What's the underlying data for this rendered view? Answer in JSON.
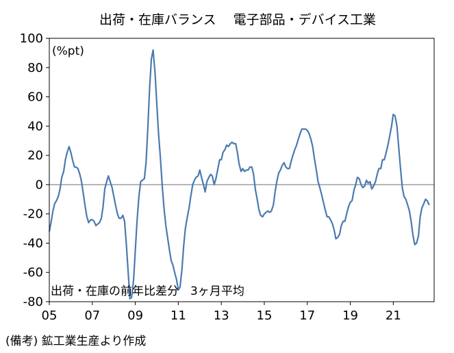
{
  "chart_data": {
    "type": "line",
    "title": "出荷・在庫バランス　 電子部品・デバイス工業",
    "unit_label": "(%pt)",
    "annotation": "出荷・在庫の前年比差分　3ヶ月平均",
    "ylim": [
      -80,
      100
    ],
    "yticks": [
      "100",
      "80",
      "60",
      "40",
      "20",
      "0",
      "-20",
      "-40",
      "-60",
      "-80"
    ],
    "xlim": [
      2005.0,
      2022.9
    ],
    "xticks": [
      {
        "label": "05",
        "x": 2005
      },
      {
        "label": "07",
        "x": 2007
      },
      {
        "label": "09",
        "x": 2009
      },
      {
        "label": "11",
        "x": 2011
      },
      {
        "label": "13",
        "x": 2013
      },
      {
        "label": "15",
        "x": 2015
      },
      {
        "label": "17",
        "x": 2017
      },
      {
        "label": "19",
        "x": 2019
      },
      {
        "label": "21",
        "x": 2021
      }
    ],
    "grid": false,
    "zero_line": true,
    "line_color": "#4a7ab0",
    "series": [
      {
        "points": [
          [
            2005.0,
            -32
          ],
          [
            2005.08,
            -26
          ],
          [
            2005.17,
            -18
          ],
          [
            2005.25,
            -13
          ],
          [
            2005.33,
            -11
          ],
          [
            2005.42,
            -8
          ],
          [
            2005.5,
            -3
          ],
          [
            2005.58,
            5
          ],
          [
            2005.67,
            9
          ],
          [
            2005.75,
            17
          ],
          [
            2005.83,
            22
          ],
          [
            2005.92,
            26
          ],
          [
            2006.0,
            22
          ],
          [
            2006.08,
            17
          ],
          [
            2006.17,
            12
          ],
          [
            2006.25,
            12
          ],
          [
            2006.33,
            11
          ],
          [
            2006.42,
            7
          ],
          [
            2006.5,
            2
          ],
          [
            2006.58,
            -6
          ],
          [
            2006.67,
            -15
          ],
          [
            2006.75,
            -22
          ],
          [
            2006.83,
            -26
          ],
          [
            2006.92,
            -24
          ],
          [
            2007.0,
            -24
          ],
          [
            2007.08,
            -25
          ],
          [
            2007.17,
            -28
          ],
          [
            2007.25,
            -27
          ],
          [
            2007.33,
            -26
          ],
          [
            2007.42,
            -23
          ],
          [
            2007.5,
            -15
          ],
          [
            2007.58,
            -3
          ],
          [
            2007.67,
            2
          ],
          [
            2007.75,
            6
          ],
          [
            2007.83,
            2
          ],
          [
            2007.92,
            -2
          ],
          [
            2008.0,
            -8
          ],
          [
            2008.08,
            -14
          ],
          [
            2008.17,
            -20
          ],
          [
            2008.25,
            -23
          ],
          [
            2008.33,
            -23
          ],
          [
            2008.42,
            -21
          ],
          [
            2008.5,
            -25
          ],
          [
            2008.58,
            -40
          ],
          [
            2008.67,
            -60
          ],
          [
            2008.75,
            -78
          ],
          [
            2008.83,
            -77
          ],
          [
            2008.92,
            -65
          ],
          [
            2009.0,
            -45
          ],
          [
            2009.08,
            -25
          ],
          [
            2009.17,
            -8
          ],
          [
            2009.25,
            2
          ],
          [
            2009.33,
            3
          ],
          [
            2009.42,
            4
          ],
          [
            2009.5,
            15
          ],
          [
            2009.58,
            38
          ],
          [
            2009.67,
            67
          ],
          [
            2009.75,
            86
          ],
          [
            2009.83,
            92
          ],
          [
            2009.92,
            76
          ],
          [
            2010.0,
            55
          ],
          [
            2010.08,
            35
          ],
          [
            2010.17,
            18
          ],
          [
            2010.25,
            0
          ],
          [
            2010.33,
            -15
          ],
          [
            2010.42,
            -28
          ],
          [
            2010.5,
            -36
          ],
          [
            2010.58,
            -44
          ],
          [
            2010.67,
            -52
          ],
          [
            2010.75,
            -55
          ],
          [
            2010.83,
            -60
          ],
          [
            2010.92,
            -65
          ],
          [
            2011.0,
            -72
          ],
          [
            2011.08,
            -70
          ],
          [
            2011.17,
            -58
          ],
          [
            2011.25,
            -42
          ],
          [
            2011.33,
            -30
          ],
          [
            2011.42,
            -22
          ],
          [
            2011.5,
            -16
          ],
          [
            2011.58,
            -8
          ],
          [
            2011.67,
            0
          ],
          [
            2011.75,
            3
          ],
          [
            2011.83,
            5
          ],
          [
            2011.92,
            6
          ],
          [
            2012.0,
            10
          ],
          [
            2012.08,
            5
          ],
          [
            2012.17,
            0
          ],
          [
            2012.25,
            -5
          ],
          [
            2012.33,
            2
          ],
          [
            2012.42,
            5
          ],
          [
            2012.5,
            7
          ],
          [
            2012.58,
            6
          ],
          [
            2012.67,
            0
          ],
          [
            2012.75,
            4
          ],
          [
            2012.83,
            10
          ],
          [
            2012.92,
            17
          ],
          [
            2013.0,
            17
          ],
          [
            2013.08,
            22
          ],
          [
            2013.17,
            24
          ],
          [
            2013.25,
            27
          ],
          [
            2013.33,
            26
          ],
          [
            2013.42,
            28
          ],
          [
            2013.5,
            29
          ],
          [
            2013.58,
            28
          ],
          [
            2013.67,
            28
          ],
          [
            2013.75,
            22
          ],
          [
            2013.83,
            14
          ],
          [
            2013.92,
            9
          ],
          [
            2014.0,
            11
          ],
          [
            2014.08,
            9
          ],
          [
            2014.17,
            10
          ],
          [
            2014.25,
            10
          ],
          [
            2014.33,
            12
          ],
          [
            2014.42,
            12
          ],
          [
            2014.5,
            7
          ],
          [
            2014.58,
            -3
          ],
          [
            2014.67,
            -10
          ],
          [
            2014.75,
            -17
          ],
          [
            2014.83,
            -21
          ],
          [
            2014.92,
            -22
          ],
          [
            2015.0,
            -20
          ],
          [
            2015.08,
            -19
          ],
          [
            2015.17,
            -18
          ],
          [
            2015.25,
            -19
          ],
          [
            2015.33,
            -18
          ],
          [
            2015.42,
            -14
          ],
          [
            2015.5,
            -5
          ],
          [
            2015.58,
            2
          ],
          [
            2015.67,
            8
          ],
          [
            2015.75,
            10
          ],
          [
            2015.83,
            13
          ],
          [
            2015.92,
            15
          ],
          [
            2016.0,
            12
          ],
          [
            2016.08,
            11
          ],
          [
            2016.17,
            11
          ],
          [
            2016.25,
            16
          ],
          [
            2016.33,
            20
          ],
          [
            2016.42,
            24
          ],
          [
            2016.5,
            27
          ],
          [
            2016.58,
            31
          ],
          [
            2016.67,
            35
          ],
          [
            2016.75,
            38
          ],
          [
            2016.83,
            38
          ],
          [
            2016.92,
            38
          ],
          [
            2017.0,
            37
          ],
          [
            2017.08,
            35
          ],
          [
            2017.17,
            31
          ],
          [
            2017.25,
            26
          ],
          [
            2017.33,
            18
          ],
          [
            2017.42,
            10
          ],
          [
            2017.5,
            2
          ],
          [
            2017.58,
            -2
          ],
          [
            2017.67,
            -7
          ],
          [
            2017.75,
            -12
          ],
          [
            2017.83,
            -17
          ],
          [
            2017.92,
            -22
          ],
          [
            2018.0,
            -22
          ],
          [
            2018.08,
            -24
          ],
          [
            2018.17,
            -27
          ],
          [
            2018.25,
            -31
          ],
          [
            2018.33,
            -37
          ],
          [
            2018.42,
            -36
          ],
          [
            2018.5,
            -34
          ],
          [
            2018.58,
            -28
          ],
          [
            2018.67,
            -25
          ],
          [
            2018.75,
            -25
          ],
          [
            2018.83,
            -20
          ],
          [
            2018.92,
            -15
          ],
          [
            2019.0,
            -12
          ],
          [
            2019.08,
            -11
          ],
          [
            2019.17,
            -4
          ],
          [
            2019.25,
            0
          ],
          [
            2019.33,
            5
          ],
          [
            2019.42,
            4
          ],
          [
            2019.5,
            0
          ],
          [
            2019.58,
            -2
          ],
          [
            2019.67,
            -1
          ],
          [
            2019.75,
            3
          ],
          [
            2019.83,
            1
          ],
          [
            2019.92,
            2
          ],
          [
            2020.0,
            -3
          ],
          [
            2020.08,
            -1
          ],
          [
            2020.17,
            2
          ],
          [
            2020.25,
            7
          ],
          [
            2020.33,
            11
          ],
          [
            2020.42,
            11
          ],
          [
            2020.5,
            17
          ],
          [
            2020.58,
            17
          ],
          [
            2020.67,
            22
          ],
          [
            2020.75,
            27
          ],
          [
            2020.83,
            33
          ],
          [
            2020.92,
            40
          ],
          [
            2021.0,
            48
          ],
          [
            2021.08,
            47
          ],
          [
            2021.17,
            40
          ],
          [
            2021.25,
            26
          ],
          [
            2021.33,
            12
          ],
          [
            2021.42,
            -2
          ],
          [
            2021.5,
            -8
          ],
          [
            2021.58,
            -10
          ],
          [
            2021.67,
            -14
          ],
          [
            2021.75,
            -18
          ],
          [
            2021.83,
            -25
          ],
          [
            2021.92,
            -35
          ],
          [
            2022.0,
            -41
          ],
          [
            2022.08,
            -40
          ],
          [
            2022.17,
            -35
          ],
          [
            2022.25,
            -22
          ],
          [
            2022.33,
            -16
          ],
          [
            2022.42,
            -13
          ],
          [
            2022.5,
            -10
          ],
          [
            2022.58,
            -11
          ],
          [
            2022.67,
            -14
          ]
        ]
      }
    ]
  },
  "footer": {
    "source": "(備考) 鉱工業生産より作成"
  }
}
